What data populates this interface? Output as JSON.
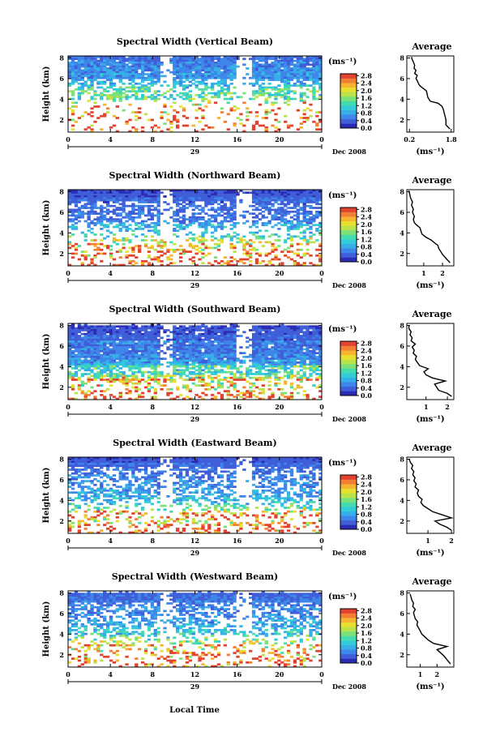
{
  "figure": {
    "x_label": "Local Time",
    "date_label": "Dec 2008",
    "day_label": "29"
  },
  "colorbar_colors": [
    "#2b2bb5",
    "#3f5ed8",
    "#3f86ea",
    "#37aee8",
    "#33cbd8",
    "#44dcae",
    "#7de17a",
    "#b9e34a",
    "#e8e030",
    "#f5b531",
    "#f27f34",
    "#e2432f"
  ],
  "chart_data": [
    {
      "type": "heatmap",
      "beam": "Vertical",
      "title": "Spectral Width (Vertical Beam)",
      "ylabel": "Height (km)",
      "xlabel": "Local Time",
      "x_ticks": [
        "0",
        "4",
        "8",
        "12",
        "16",
        "20",
        "0"
      ],
      "xlim": [
        0,
        24
      ],
      "y_ticks": [
        "2",
        "4",
        "6",
        "8"
      ],
      "ylim": [
        0.8,
        8.2
      ],
      "colorbar": {
        "unit": "(ms⁻¹)",
        "ticks": [
          "0.0",
          "0.4",
          "0.8",
          "1.2",
          "1.6",
          "2.0",
          "2.4",
          "2.8"
        ],
        "range": [
          0,
          2.9
        ]
      },
      "profile": [
        {
          "h": 6.0,
          "p": [
            [
              0.95,
              1.0
            ],
            [
              0.85,
              1.05
            ],
            [
              0.7,
              1.1
            ],
            [
              0.55,
              1.0
            ],
            [
              0.45,
              0.95
            ],
            [
              0.4,
              0.95
            ],
            [
              0.4,
              0.9
            ]
          ]
        },
        {
          "h": 4.0,
          "p": [
            [
              0.55,
              0.2
            ],
            [
              0.4,
              0.3
            ],
            [
              0.3,
              0.45
            ],
            [
              0.25,
              0.4
            ],
            [
              0.2,
              0.35
            ]
          ]
        },
        {
          "h": 0.7,
          "p": [
            [
              0.15,
              0.7
            ],
            [
              0.1,
              0.8
            ],
            [
              0.05,
              1.0
            ]
          ]
        }
      ],
      "average": {
        "title": "Average",
        "xlabel": "(ms⁻¹)",
        "x_ticks": [
          "0.2",
          "1.8"
        ],
        "x_tick_values": [
          0.2,
          1.8
        ],
        "xlim": [
          0.1,
          1.9
        ],
        "y_ticks": [
          "2",
          "4",
          "6",
          "8"
        ],
        "ylim": [
          0.8,
          8.2
        ],
        "height": [
          1.1,
          1.5,
          2.0,
          2.5,
          3.0,
          3.3,
          3.6,
          3.8,
          4.0,
          4.2,
          4.5,
          4.8,
          5.0,
          5.3,
          5.5,
          5.8,
          6.0,
          6.3,
          6.5,
          6.8,
          7.0,
          7.3,
          7.6,
          7.9,
          8.1
        ],
        "width": [
          1.75,
          1.6,
          1.6,
          1.55,
          1.5,
          1.45,
          1.3,
          1.0,
          0.95,
          0.9,
          0.88,
          0.85,
          0.75,
          0.6,
          0.55,
          0.5,
          0.45,
          0.5,
          0.4,
          0.45,
          0.38,
          0.4,
          0.35,
          0.3,
          0.28
        ]
      }
    },
    {
      "type": "heatmap",
      "beam": "Northward",
      "title": "Spectral Width (Northward Beam)",
      "ylabel": "Height (km)",
      "xlabel": "Local Time",
      "x_ticks": [
        "0",
        "4",
        "8",
        "12",
        "16",
        "20",
        "0"
      ],
      "xlim": [
        0,
        24
      ],
      "y_ticks": [
        "2",
        "4",
        "6",
        "8"
      ],
      "ylim": [
        0.8,
        8.2
      ],
      "colorbar": {
        "unit": "(ms⁻¹)",
        "ticks": [
          "0.0",
          "0.4",
          "0.8",
          "1.2",
          "1.6",
          "2.0",
          "2.4",
          "2.8"
        ],
        "range": [
          0,
          2.9
        ]
      },
      "profile": [
        {
          "h": 7.0,
          "p": [
            [
              1.0,
              1.0
            ],
            [
              0.9,
              1.1
            ],
            [
              0.75,
              1.3
            ],
            [
              0.6,
              1.4
            ],
            [
              0.5,
              1.2
            ],
            [
              0.45,
              1.0
            ],
            [
              0.4,
              0.95
            ]
          ]
        },
        {
          "h": 4.5,
          "p": [
            [
              0.6,
              0.2
            ],
            [
              0.45,
              0.3
            ],
            [
              0.35,
              0.4
            ],
            [
              0.28,
              0.4
            ],
            [
              0.22,
              0.35
            ]
          ]
        },
        {
          "h": 0.6,
          "p": [
            [
              0.3,
              0.85
            ],
            [
              0.25,
              1.0
            ],
            [
              0.2,
              1.3
            ]
          ]
        }
      ],
      "average": {
        "title": "Average",
        "xlabel": "(ms⁻¹)",
        "x_ticks": [
          "1",
          "2"
        ],
        "x_tick_values": [
          1,
          2
        ],
        "xlim": [
          0.1,
          2.6
        ],
        "y_ticks": [
          "2",
          "4",
          "6",
          "8"
        ],
        "ylim": [
          0.8,
          8.2
        ],
        "height": [
          1.1,
          1.5,
          1.9,
          2.2,
          2.5,
          2.8,
          3.0,
          3.3,
          3.6,
          3.9,
          4.2,
          4.5,
          4.8,
          5.0,
          5.3,
          5.6,
          6.0,
          6.3,
          6.7,
          7.0,
          7.4,
          7.8,
          8.1
        ],
        "width": [
          2.4,
          2.2,
          2.0,
          1.9,
          1.8,
          1.75,
          1.6,
          1.4,
          1.1,
          0.9,
          0.85,
          0.8,
          0.6,
          0.5,
          0.45,
          0.5,
          0.4,
          0.45,
          0.35,
          0.4,
          0.3,
          0.25,
          0.2
        ]
      }
    },
    {
      "type": "heatmap",
      "beam": "Southward",
      "title": "Spectral Width (Southward Beam)",
      "ylabel": "Height (km)",
      "xlabel": "Local Time",
      "x_ticks": [
        "0",
        "4",
        "8",
        "12",
        "16",
        "20",
        "0"
      ],
      "xlim": [
        0,
        24
      ],
      "y_ticks": [
        "2",
        "4",
        "6",
        "8"
      ],
      "ylim": [
        0.8,
        8.2
      ],
      "colorbar": {
        "unit": "(ms⁻¹)",
        "ticks": [
          "0.0",
          "0.4",
          "0.8",
          "1.2",
          "1.6",
          "2.0",
          "2.4",
          "2.8"
        ],
        "range": [
          0,
          2.9
        ]
      },
      "profile": [
        {
          "h": 8.0,
          "p": [
            [
              0.2,
              0.2
            ],
            [
              0.15,
              0.25
            ],
            [
              0.1,
              0.2
            ],
            [
              0.05,
              0.15
            ]
          ]
        },
        {
          "h": 4.0,
          "p": [
            [
              0.95,
              0.95
            ],
            [
              0.85,
              1.1
            ],
            [
              0.7,
              1.4
            ],
            [
              0.55,
              1.3
            ],
            [
              0.45,
              1.1
            ],
            [
              0.4,
              0.9
            ],
            [
              0.35,
              0.8
            ]
          ]
        },
        {
          "h": 2.7,
          "p": [
            [
              0.6,
              0.25
            ],
            [
              0.45,
              0.35
            ],
            [
              0.3,
              0.45
            ],
            [
              0.2,
              0.4
            ]
          ]
        },
        {
          "h": 0.6,
          "p": [
            [
              0.3,
              0.85
            ],
            [
              0.25,
              1.0
            ],
            [
              0.2,
              1.3
            ]
          ]
        }
      ],
      "average": {
        "title": "Average",
        "xlabel": "(ms⁻¹)",
        "x_ticks": [
          "1",
          "2"
        ],
        "x_tick_values": [
          1,
          2
        ],
        "xlim": [
          0.1,
          2.3
        ],
        "y_ticks": [
          "2",
          "4",
          "6",
          "8"
        ],
        "ylim": [
          0.8,
          8.2
        ],
        "height": [
          1.1,
          1.4,
          1.7,
          2.0,
          2.3,
          2.6,
          2.9,
          3.2,
          3.5,
          3.8,
          4.1,
          4.4,
          4.7,
          5.0,
          5.3,
          5.6,
          5.9,
          6.2,
          6.5,
          6.8,
          7.1,
          7.4,
          7.7,
          8.0
        ],
        "width": [
          2.2,
          2.0,
          1.6,
          1.5,
          1.4,
          1.9,
          1.3,
          1.0,
          0.9,
          1.1,
          0.7,
          0.6,
          0.5,
          0.55,
          0.4,
          0.45,
          0.35,
          0.5,
          0.3,
          0.35,
          0.25,
          0.3,
          0.2,
          0.2
        ]
      }
    },
    {
      "type": "heatmap",
      "beam": "Eastward",
      "title": "Spectral Width (Eastward Beam)",
      "ylabel": "Height (km)",
      "xlabel": "Local Time",
      "x_ticks": [
        "0",
        "4",
        "8",
        "12",
        "16",
        "20",
        "0"
      ],
      "xlim": [
        0,
        24
      ],
      "y_ticks": [
        "2",
        "4",
        "6",
        "8"
      ],
      "ylim": [
        0.8,
        8.2
      ],
      "colorbar": {
        "unit": "(ms⁻¹)",
        "ticks": [
          "0.0",
          "0.4",
          "0.8",
          "1.2",
          "1.6",
          "2.0",
          "2.4",
          "2.8"
        ],
        "range": [
          0,
          2.9
        ]
      },
      "profile": [
        {
          "h": 7.3,
          "p": [
            [
              1.0,
              1.0
            ],
            [
              0.9,
              1.1
            ],
            [
              0.75,
              1.2
            ],
            [
              0.6,
              1.3
            ],
            [
              0.5,
              1.1
            ],
            [
              0.45,
              0.95
            ],
            [
              0.4,
              0.9
            ]
          ]
        },
        {
          "h": 4.0,
          "p": [
            [
              0.55,
              0.2
            ],
            [
              0.4,
              0.3
            ],
            [
              0.3,
              0.4
            ],
            [
              0.22,
              0.35
            ]
          ]
        },
        {
          "h": 0.6,
          "p": [
            [
              0.3,
              0.85
            ],
            [
              0.25,
              1.0
            ],
            [
              0.2,
              1.3
            ]
          ]
        }
      ],
      "average": {
        "title": "Average",
        "xlabel": "(ms⁻¹)",
        "x_ticks": [
          "1",
          "2"
        ],
        "x_tick_values": [
          1,
          2
        ],
        "xlim": [
          0.1,
          2.1
        ],
        "y_ticks": [
          "2",
          "4",
          "6",
          "8"
        ],
        "ylim": [
          0.8,
          8.2
        ],
        "height": [
          1.1,
          1.4,
          1.7,
          2.0,
          2.3,
          2.6,
          2.9,
          3.2,
          3.5,
          3.8,
          4.1,
          4.4,
          4.7,
          5.0,
          5.3,
          5.6,
          5.9,
          6.2,
          6.5,
          6.8,
          7.1,
          7.4,
          7.7,
          8.0
        ],
        "width": [
          2.0,
          1.8,
          1.5,
          1.3,
          2.0,
          1.6,
          1.2,
          1.0,
          0.8,
          0.7,
          0.75,
          0.6,
          0.55,
          0.6,
          0.45,
          0.5,
          0.4,
          0.45,
          0.35,
          0.4,
          0.3,
          0.35,
          0.25,
          0.2
        ]
      }
    },
    {
      "type": "heatmap",
      "beam": "Westward",
      "title": "Spectral Width (Westward Beam)",
      "ylabel": "Height (km)",
      "xlabel": "Local Time",
      "x_ticks": [
        "0",
        "4",
        "8",
        "12",
        "16",
        "20",
        "0"
      ],
      "xlim": [
        0,
        24
      ],
      "y_ticks": [
        "2",
        "4",
        "6",
        "8"
      ],
      "ylim": [
        0.8,
        8.2
      ],
      "colorbar": {
        "unit": "(ms⁻¹)",
        "ticks": [
          "0.0",
          "0.4",
          "0.8",
          "1.2",
          "1.6",
          "2.0",
          "2.4",
          "2.8"
        ],
        "range": [
          0,
          2.9
        ]
      },
      "profile": [
        {
          "h": 8.0,
          "p": [
            [
              0.15,
              0.2
            ],
            [
              0.1,
              0.25
            ],
            [
              0.05,
              0.2
            ]
          ]
        },
        {
          "h": 7.0,
          "p": [
            [
              1.0,
              1.0
            ],
            [
              0.9,
              1.1
            ],
            [
              0.75,
              1.3
            ],
            [
              0.6,
              1.4
            ],
            [
              0.5,
              1.2
            ],
            [
              0.45,
              1.0
            ],
            [
              0.4,
              0.95
            ]
          ]
        },
        {
          "h": 4.0,
          "p": [
            [
              0.55,
              0.2
            ],
            [
              0.4,
              0.3
            ],
            [
              0.3,
              0.4
            ],
            [
              0.22,
              0.35
            ]
          ]
        },
        {
          "h": 0.6,
          "p": [
            [
              0.25,
              0.85
            ],
            [
              0.2,
              1.0
            ],
            [
              0.15,
              1.3
            ]
          ]
        }
      ],
      "average": {
        "title": "Average",
        "xlabel": "(ms⁻¹)",
        "x_ticks": [
          "1",
          "2"
        ],
        "x_tick_values": [
          1,
          2
        ],
        "xlim": [
          0.2,
          3.0
        ],
        "y_ticks": [
          "2",
          "4",
          "6",
          "8"
        ],
        "ylim": [
          0.8,
          8.2
        ],
        "height": [
          1.1,
          1.5,
          1.9,
          2.2,
          2.5,
          2.8,
          3.1,
          3.4,
          3.7,
          4.0,
          4.3,
          4.6,
          4.9,
          5.2,
          5.5,
          5.8,
          6.1,
          6.4,
          6.7,
          7.0,
          7.3,
          7.6,
          7.9
        ],
        "width": [
          2.8,
          2.6,
          2.4,
          2.2,
          2.0,
          2.6,
          1.8,
          1.5,
          1.3,
          1.1,
          1.0,
          0.9,
          0.8,
          0.85,
          0.7,
          0.65,
          0.6,
          0.7,
          0.55,
          0.6,
          0.5,
          0.45,
          0.4
        ]
      }
    }
  ]
}
